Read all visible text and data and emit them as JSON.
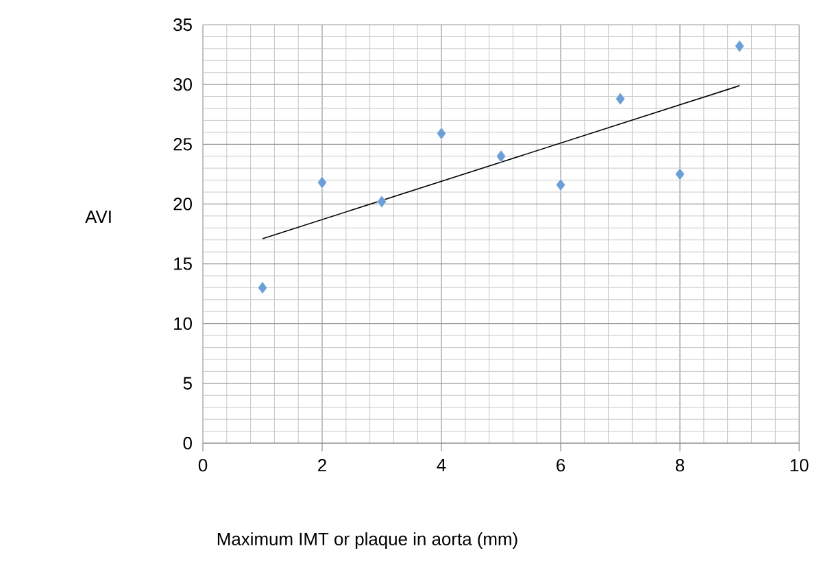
{
  "chart_data": {
    "type": "scatter",
    "xlabel": "Maximum IMT or plaque in aorta (mm)",
    "ylabel": "AVI",
    "xlim": [
      0,
      10
    ],
    "ylim": [
      0,
      35
    ],
    "xticks": [
      0,
      2,
      4,
      6,
      8,
      10
    ],
    "yticks": [
      0,
      5,
      10,
      15,
      20,
      25,
      30,
      35
    ],
    "grid": true,
    "legend": false,
    "series": [
      {
        "type": "scatter",
        "marker": "diamond",
        "color": "#6a9fd8",
        "x": [
          1,
          2,
          3,
          4,
          5,
          6,
          7,
          8,
          9
        ],
        "values": [
          13,
          21.8,
          20.2,
          25.9,
          24.0,
          21.6,
          28.8,
          22.5,
          33.2
        ]
      },
      {
        "type": "line",
        "marker": "none",
        "line_style": "solid",
        "color": "#000000",
        "x": [
          1,
          9
        ],
        "values": [
          17.1,
          29.9
        ]
      }
    ]
  }
}
